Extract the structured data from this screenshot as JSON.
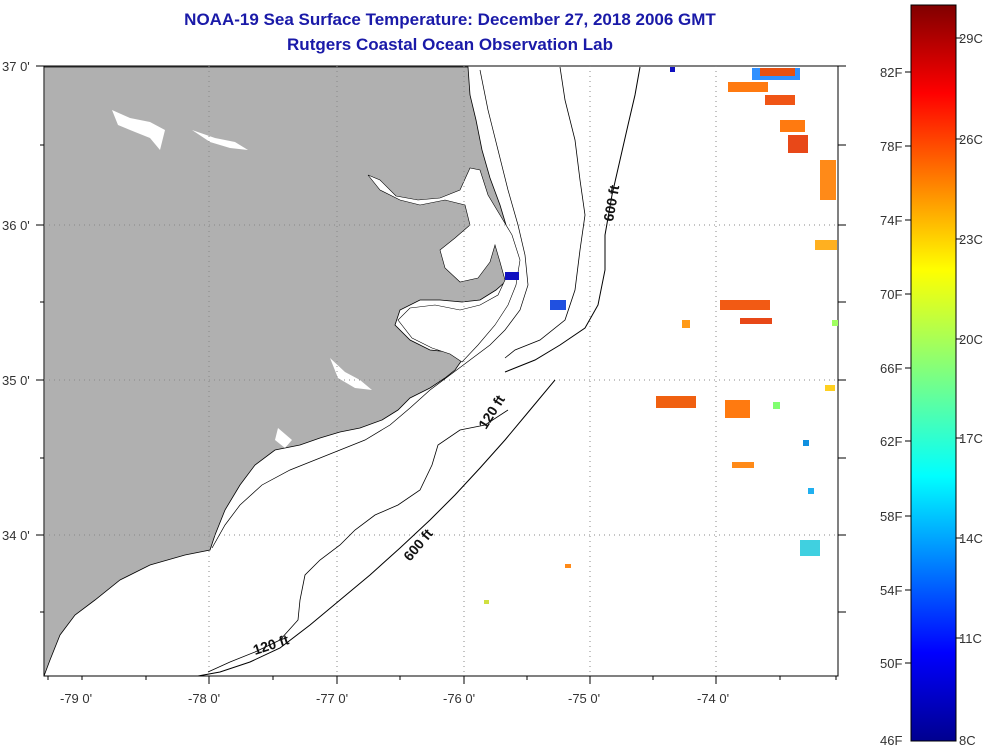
{
  "title": "NOAA-19 Sea Surface Temperature:  December 27, 2018 2006 GMT",
  "subtitle": "Rutgers Coastal Ocean Observation Lab",
  "lon_labels": [
    "-79 0'",
    "-78 0'",
    "-77 0'",
    "-76 0'",
    "-75 0'",
    "-74 0'"
  ],
  "lat_labels": [
    "37 0'",
    "36 0'",
    "35 0'",
    "34 0'"
  ],
  "contour_labels": {
    "c600_north": "600 ft",
    "c120_mid": "120 ft",
    "c600_mid": "600 ft",
    "c120_south": "120 ft"
  },
  "colorbar": {
    "f_labels": [
      "82F",
      "78F",
      "74F",
      "70F",
      "66F",
      "62F",
      "58F",
      "54F",
      "50F",
      "46F"
    ],
    "c_labels": [
      "29C",
      "26C",
      "23C",
      "20C",
      "17C",
      "14C",
      "11C",
      "8C"
    ],
    "min_color": "#00008f",
    "max_color": "#800000"
  },
  "colors": {
    "land": "#b0b0b0",
    "title": "#1a1aa8",
    "contour": "#000000"
  }
}
